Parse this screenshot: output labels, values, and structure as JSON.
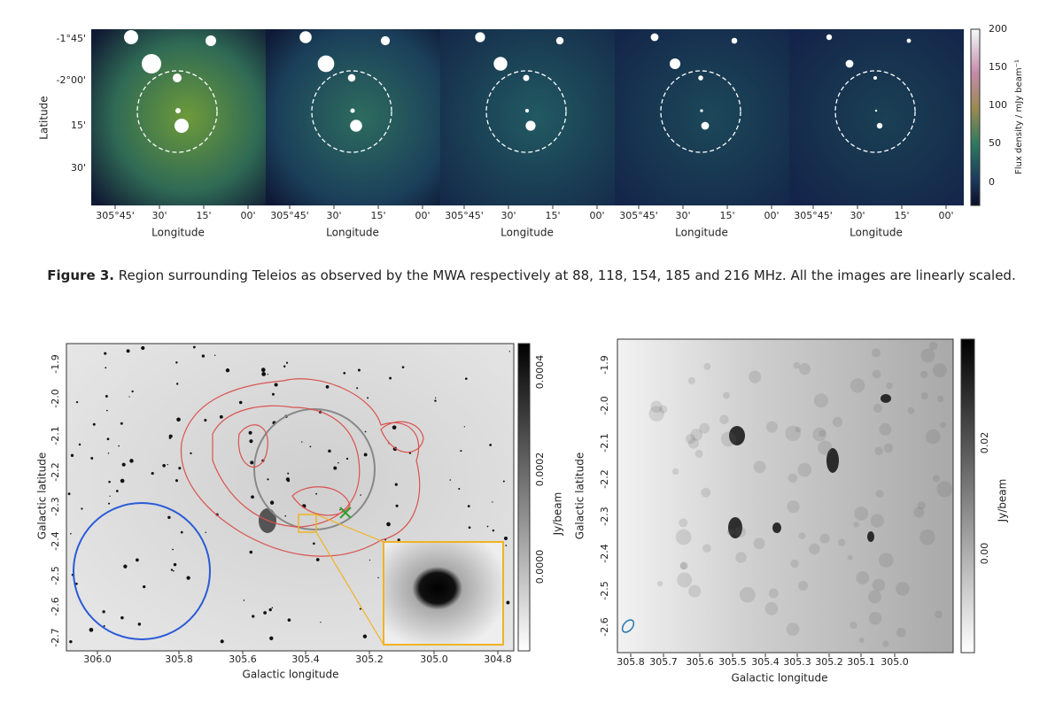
{
  "figure3": {
    "y_label": "Latitude",
    "y_ticks": [
      "-1°45'",
      "-2°00'",
      "15'",
      "30'"
    ],
    "panels": [
      {
        "x_ticks": [
          "305°45'",
          "30'",
          "15'",
          "00'"
        ],
        "x_label": "Longitude"
      },
      {
        "x_ticks": [
          "305°45'",
          "30'",
          "15'",
          "00'"
        ],
        "x_label": "Longitude"
      },
      {
        "x_ticks": [
          "305°45'",
          "30'",
          "15'",
          "00'"
        ],
        "x_label": "Longitude"
      },
      {
        "x_ticks": [
          "305°45'",
          "30'",
          "15'",
          "00'"
        ],
        "x_label": "Longitude"
      },
      {
        "x_ticks": [
          "305°45'",
          "30'",
          "15'",
          "00'"
        ],
        "x_label": "Longitude"
      }
    ],
    "colorbar": {
      "label": "Flux density / mJy beam⁻¹",
      "ticks": [
        "200",
        "150",
        "100",
        "50",
        "0"
      ]
    },
    "caption": {
      "label": "Figure 3.",
      "text": "Region surrounding Teleios as observed by the MWA respectively at 88, 118, 154, 185 and 216 MHz. All the images are linearly scaled."
    }
  },
  "left_image": {
    "x_label": "Galactic longitude",
    "y_label": "Galactic latitude",
    "x_ticks": [
      "306.0",
      "305.8",
      "305.6",
      "305.4",
      "305.2",
      "305.0",
      "304.8"
    ],
    "y_ticks": [
      "-1.9",
      "-2.0",
      "-2.1",
      "-2.2",
      "-2.3",
      "-2.4",
      "-2.5",
      "-2.6",
      "-2.7"
    ],
    "colorbar": {
      "label": "Jy/beam",
      "ticks": [
        "0.0004",
        "0.0002",
        "0.0000"
      ]
    }
  },
  "right_image": {
    "x_label": "Galactic longitude",
    "y_label": "Galactic latitude",
    "x_ticks": [
      "305.8",
      "305.7",
      "305.6",
      "305.5",
      "305.4",
      "305.3",
      "305.2",
      "305.1",
      "305.0"
    ],
    "y_ticks": [
      "-1.9",
      "-2.0",
      "-2.1",
      "-2.2",
      "-2.3",
      "-2.4",
      "-2.5",
      "-2.6"
    ],
    "colorbar": {
      "label": "Jy/beam",
      "ticks": [
        "0.02",
        "0.00"
      ]
    }
  }
}
